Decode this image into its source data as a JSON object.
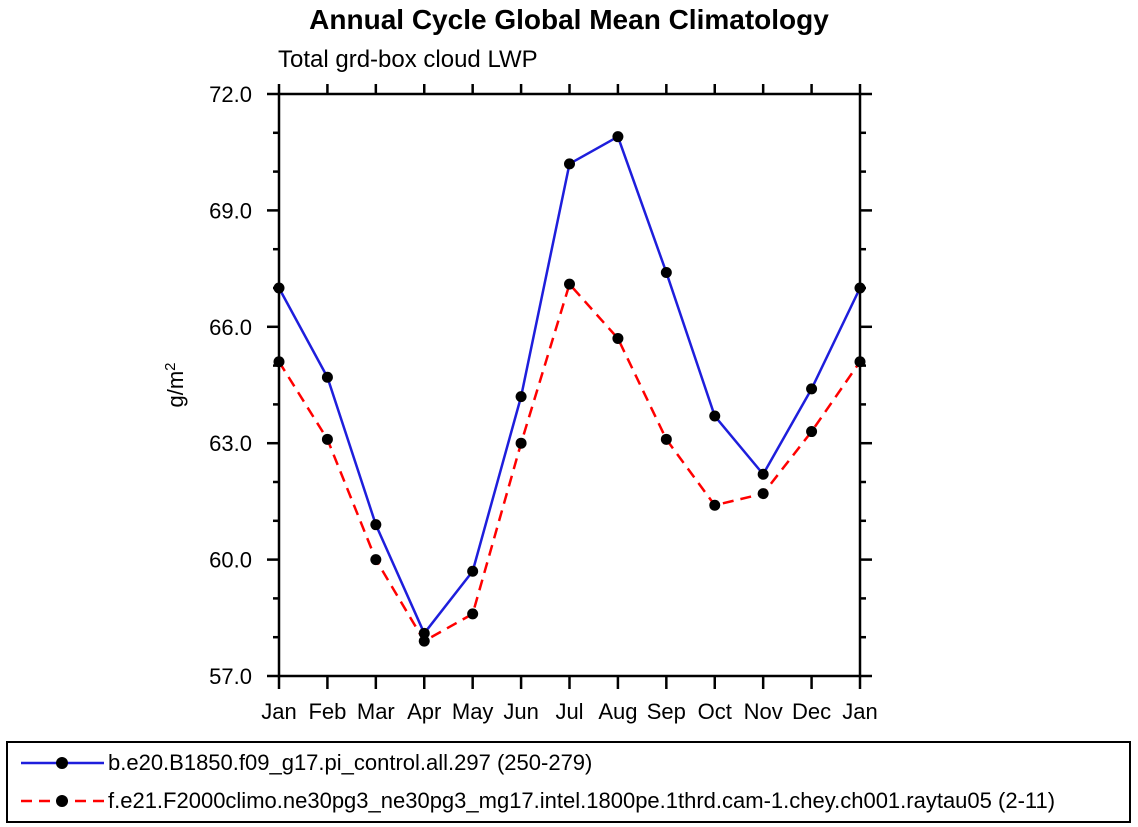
{
  "page_background": "#ffffff",
  "chart_data": {
    "type": "line",
    "title": "Annual Cycle Global Mean Climatology",
    "subtitle": "Total grd-box cloud LWP",
    "ylabel": "g/m²",
    "ylabel_base": "g/m",
    "ylabel_sup": "2",
    "xlabel": "",
    "categories": [
      "Jan",
      "Feb",
      "Mar",
      "Apr",
      "May",
      "Jun",
      "Jul",
      "Aug",
      "Sep",
      "Oct",
      "Nov",
      "Dec",
      "Jan"
    ],
    "ylim": [
      57,
      72
    ],
    "ytick_major": [
      57,
      60,
      63,
      66,
      69,
      72
    ],
    "ytick_labels": [
      "57.0",
      "60.0",
      "63.0",
      "66.0",
      "69.0",
      "72.0"
    ],
    "ytick_minor_step": 1,
    "grid": false,
    "legend_position": "bottom-box",
    "axis_color": "#000000",
    "series": [
      {
        "name": "b.e20.B1850.f09_g17.pi_control.all.297 (250-279)",
        "color": "#1e1edc",
        "style": "solid",
        "marker": "filled-circle",
        "marker_color": "#000000",
        "values": [
          67.0,
          64.7,
          60.9,
          58.1,
          59.7,
          64.2,
          70.2,
          70.9,
          67.4,
          63.7,
          62.2,
          64.4,
          67.0
        ]
      },
      {
        "name": "f.e21.F2000climo.ne30pg3_ne30pg3_mg17.intel.1800pe.1thrd.cam-1.chey.ch001.raytau05 (2-11)",
        "color": "#ff0000",
        "style": "dashed",
        "marker": "filled-circle",
        "marker_color": "#000000",
        "values": [
          65.1,
          63.1,
          60.0,
          57.9,
          58.6,
          63.0,
          67.1,
          65.7,
          63.1,
          61.4,
          61.7,
          63.3,
          65.1
        ]
      }
    ]
  }
}
